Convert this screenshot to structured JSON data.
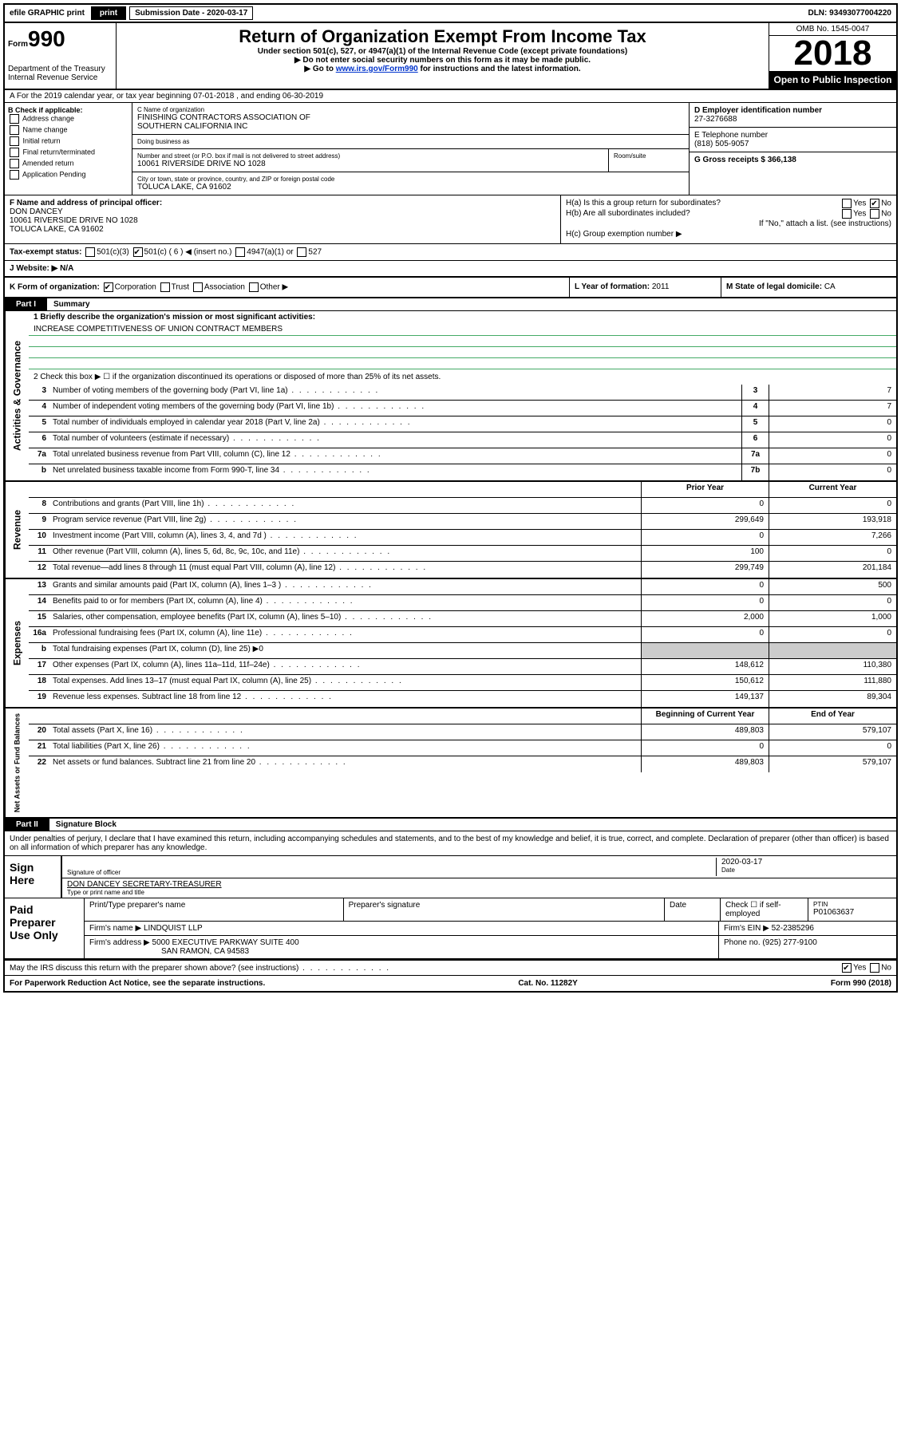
{
  "topbar": {
    "efile": "efile GRAPHIC print",
    "submission_label": "Submission Date - 2020-03-17",
    "dln": "DLN: 93493077004220"
  },
  "header": {
    "form_prefix": "Form",
    "form_number": "990",
    "dept": "Department of the Treasury\nInternal Revenue Service",
    "title": "Return of Organization Exempt From Income Tax",
    "sub1": "Under section 501(c), 527, or 4947(a)(1) of the Internal Revenue Code (except private foundations)",
    "sub2": "▶ Do not enter social security numbers on this form as it may be made public.",
    "sub3_pre": "▶ Go to ",
    "sub3_link": "www.irs.gov/Form990",
    "sub3_post": " for instructions and the latest information.",
    "omb": "OMB No. 1545-0047",
    "year": "2018",
    "inspect": "Open to Public Inspection"
  },
  "row_a": "A For the 2019 calendar year, or tax year beginning 07-01-2018    , and ending 06-30-2019",
  "col_b": {
    "title": "B Check if applicable:",
    "opts": [
      "Address change",
      "Name change",
      "Initial return",
      "Final return/terminated",
      "Amended return",
      "Application Pending"
    ]
  },
  "col_c": {
    "name_label": "C Name of organization",
    "name": "FINISHING CONTRACTORS ASSOCIATION OF\nSOUTHERN CALIFORNIA INC",
    "dba_label": "Doing business as",
    "dba": "",
    "addr_label": "Number and street (or P.O. box if mail is not delivered to street address)",
    "room_label": "Room/suite",
    "addr": "10061 RIVERSIDE DRIVE NO 1028",
    "city_label": "City or town, state or province, country, and ZIP or foreign postal code",
    "city": "TOLUCA LAKE, CA  91602"
  },
  "col_d": {
    "ein_label": "D Employer identification number",
    "ein": "27-3276688",
    "tel_label": "E Telephone number",
    "tel": "(818) 505-9057",
    "gross_label": "G Gross receipts $ 366,138"
  },
  "section_f": {
    "label": "F Name and address of principal officer:",
    "name": "DON DANCEY",
    "addr1": "10061 RIVERSIDE DRIVE NO 1028",
    "addr2": "TOLUCA LAKE, CA  91602"
  },
  "section_h": {
    "ha": "H(a)  Is this a group return for subordinates?",
    "ha_yes": "Yes",
    "ha_no": "No",
    "hb": "H(b)  Are all subordinates included?",
    "hb_yes": "Yes",
    "hb_no": "No",
    "hb_note": "If \"No,\" attach a list. (see instructions)",
    "hc": "H(c)  Group exemption number ▶"
  },
  "tax_status": {
    "label": "Tax-exempt status:",
    "c3": "501(c)(3)",
    "c": "501(c) ( 6 ) ◀ (insert no.)",
    "a1": "4947(a)(1) or",
    "s527": "527"
  },
  "website": {
    "label": "J  Website: ▶",
    "value": "N/A"
  },
  "row_k": {
    "label": "K Form of organization:",
    "corp": "Corporation",
    "trust": "Trust",
    "assoc": "Association",
    "other": "Other ▶",
    "year_label": "L Year of formation: ",
    "year": "2011",
    "state_label": "M State of legal domicile: ",
    "state": "CA"
  },
  "part1": {
    "tab": "Part I",
    "title": "Summary",
    "line1_label": "1  Briefly describe the organization's mission or most significant activities:",
    "line1_value": "INCREASE COMPETITIVENESS OF UNION CONTRACT MEMBERS",
    "line2": "2   Check this box ▶ ☐  if the organization discontinued its operations or disposed of more than 25% of its net assets.",
    "lines_gov": [
      {
        "n": "3",
        "d": "Number of voting members of the governing body (Part VI, line 1a)",
        "c": "3",
        "v": "7"
      },
      {
        "n": "4",
        "d": "Number of independent voting members of the governing body (Part VI, line 1b)",
        "c": "4",
        "v": "7"
      },
      {
        "n": "5",
        "d": "Total number of individuals employed in calendar year 2018 (Part V, line 2a)",
        "c": "5",
        "v": "0"
      },
      {
        "n": "6",
        "d": "Total number of volunteers (estimate if necessary)",
        "c": "6",
        "v": "0"
      },
      {
        "n": "7a",
        "d": "Total unrelated business revenue from Part VIII, column (C), line 12",
        "c": "7a",
        "v": "0"
      },
      {
        "n": "b",
        "d": "Net unrelated business taxable income from Form 990-T, line 34",
        "c": "7b",
        "v": "0"
      }
    ],
    "rev_hdr": {
      "prior": "Prior Year",
      "current": "Current Year"
    },
    "lines_rev": [
      {
        "n": "8",
        "d": "Contributions and grants (Part VIII, line 1h)",
        "p": "0",
        "c": "0"
      },
      {
        "n": "9",
        "d": "Program service revenue (Part VIII, line 2g)",
        "p": "299,649",
        "c": "193,918"
      },
      {
        "n": "10",
        "d": "Investment income (Part VIII, column (A), lines 3, 4, and 7d )",
        "p": "0",
        "c": "7,266"
      },
      {
        "n": "11",
        "d": "Other revenue (Part VIII, column (A), lines 5, 6d, 8c, 9c, 10c, and 11e)",
        "p": "100",
        "c": "0"
      },
      {
        "n": "12",
        "d": "Total revenue—add lines 8 through 11 (must equal Part VIII, column (A), line 12)",
        "p": "299,749",
        "c": "201,184"
      }
    ],
    "lines_exp": [
      {
        "n": "13",
        "d": "Grants and similar amounts paid (Part IX, column (A), lines 1–3 )",
        "p": "0",
        "c": "500"
      },
      {
        "n": "14",
        "d": "Benefits paid to or for members (Part IX, column (A), line 4)",
        "p": "0",
        "c": "0"
      },
      {
        "n": "15",
        "d": "Salaries, other compensation, employee benefits (Part IX, column (A), lines 5–10)",
        "p": "2,000",
        "c": "1,000"
      },
      {
        "n": "16a",
        "d": "Professional fundraising fees (Part IX, column (A), line 11e)",
        "p": "0",
        "c": "0"
      },
      {
        "n": "b",
        "d": "Total fundraising expenses (Part IX, column (D), line 25) ▶0",
        "p": "",
        "c": "",
        "nobox": true
      },
      {
        "n": "17",
        "d": "Other expenses (Part IX, column (A), lines 11a–11d, 11f–24e)",
        "p": "148,612",
        "c": "110,380"
      },
      {
        "n": "18",
        "d": "Total expenses. Add lines 13–17 (must equal Part IX, column (A), line 25)",
        "p": "150,612",
        "c": "111,880"
      },
      {
        "n": "19",
        "d": "Revenue less expenses. Subtract line 18 from line 12",
        "p": "149,137",
        "c": "89,304"
      }
    ],
    "net_hdr": {
      "begin": "Beginning of Current Year",
      "end": "End of Year"
    },
    "lines_net": [
      {
        "n": "20",
        "d": "Total assets (Part X, line 16)",
        "p": "489,803",
        "c": "579,107"
      },
      {
        "n": "21",
        "d": "Total liabilities (Part X, line 26)",
        "p": "0",
        "c": "0"
      },
      {
        "n": "22",
        "d": "Net assets or fund balances. Subtract line 21 from line 20",
        "p": "489,803",
        "c": "579,107"
      }
    ]
  },
  "vtabs": {
    "gov": "Activities & Governance",
    "rev": "Revenue",
    "exp": "Expenses",
    "net": "Net Assets or Fund Balances"
  },
  "part2": {
    "tab": "Part II",
    "title": "Signature Block",
    "decl": "Under penalties of perjury, I declare that I have examined this return, including accompanying schedules and statements, and to the best of my knowledge and belief, it is true, correct, and complete. Declaration of preparer (other than officer) is based on all information of which preparer has any knowledge."
  },
  "sign": {
    "label": "Sign Here",
    "sig_lbl": "Signature of officer",
    "date_lbl": "Date",
    "date": "2020-03-17",
    "name": "DON DANCEY SECRETARY-TREASURER",
    "name_lbl": "Type or print name and title"
  },
  "paid": {
    "label": "Paid Preparer Use Only",
    "h1": "Print/Type preparer's name",
    "h2": "Preparer's signature",
    "h3": "Date",
    "h4_chk": "Check ☐ if self-employed",
    "h5_lbl": "PTIN",
    "h5": "P01063637",
    "firm_lbl": "Firm's name    ▶",
    "firm": "LINDQUIST LLP",
    "ein_lbl": "Firm's EIN ▶",
    "ein": "52-2385296",
    "addr_lbl": "Firm's address ▶",
    "addr1": "5000 EXECUTIVE PARKWAY SUITE 400",
    "addr2": "SAN RAMON, CA  94583",
    "phone_lbl": "Phone no.",
    "phone": "(925) 277-9100"
  },
  "discuss": {
    "text": "May the IRS discuss this return with the preparer shown above? (see instructions)",
    "yes": "Yes",
    "no": "No"
  },
  "footer": {
    "left": "For Paperwork Reduction Act Notice, see the separate instructions.",
    "mid": "Cat. No. 11282Y",
    "right": "Form 990 (2018)"
  }
}
